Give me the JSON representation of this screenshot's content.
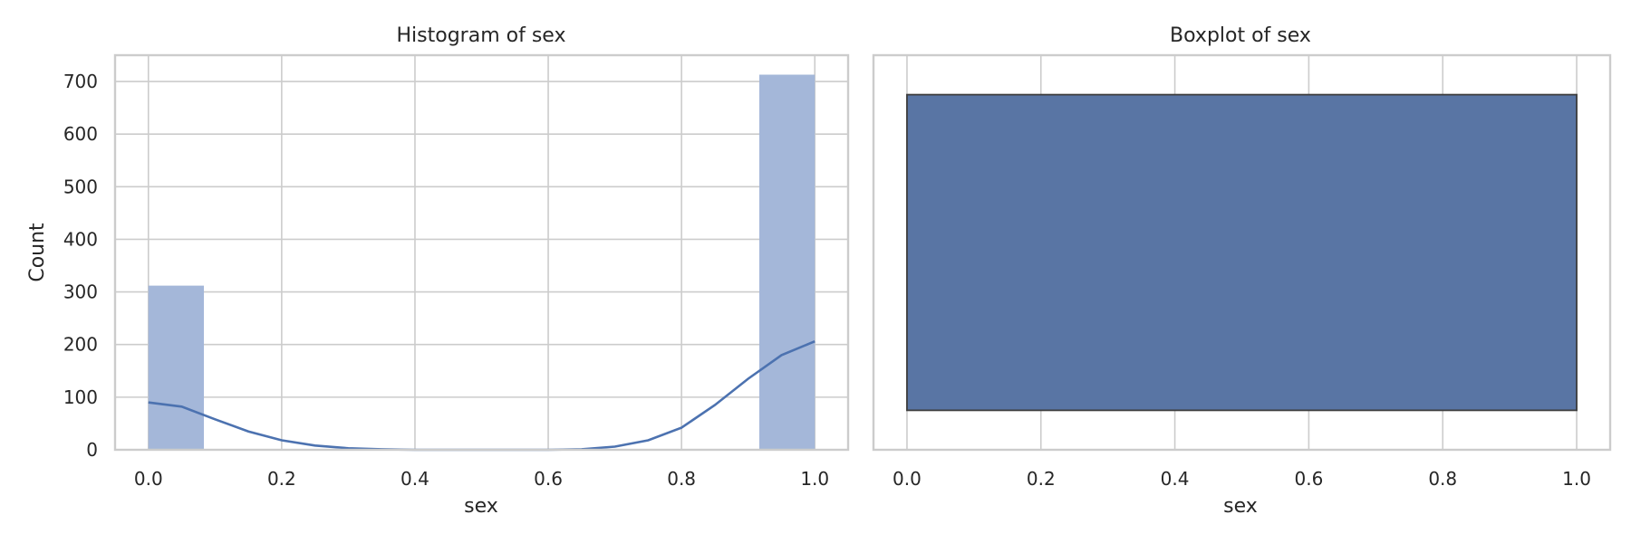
{
  "chart_data": [
    {
      "type": "bar",
      "title": "Histogram of sex",
      "xlabel": "sex",
      "ylabel": "Count",
      "xlim": [
        -0.05,
        1.05
      ],
      "ylim": [
        0,
        750
      ],
      "xticks": [
        "0.0",
        "0.2",
        "0.4",
        "0.6",
        "0.8",
        "1.0"
      ],
      "yticks": [
        "0",
        "100",
        "200",
        "300",
        "400",
        "500",
        "600",
        "700"
      ],
      "grid": true,
      "bins": [
        {
          "x0": 0.0,
          "x1": 0.0833,
          "count": 312
        },
        {
          "x0": 0.9167,
          "x1": 1.0,
          "count": 713
        }
      ],
      "kde": [
        [
          0.0,
          90
        ],
        [
          0.05,
          82
        ],
        [
          0.1,
          58
        ],
        [
          0.15,
          35
        ],
        [
          0.2,
          18
        ],
        [
          0.25,
          8
        ],
        [
          0.3,
          3
        ],
        [
          0.35,
          1
        ],
        [
          0.4,
          0
        ],
        [
          0.5,
          0
        ],
        [
          0.6,
          0
        ],
        [
          0.65,
          1
        ],
        [
          0.7,
          6
        ],
        [
          0.75,
          18
        ],
        [
          0.8,
          42
        ],
        [
          0.85,
          85
        ],
        [
          0.9,
          135
        ],
        [
          0.95,
          180
        ],
        [
          1.0,
          206
        ]
      ],
      "bar_color": "#a4b7d9",
      "line_color": "#4c72b0"
    },
    {
      "type": "box",
      "title": "Boxplot of sex",
      "xlabel": "sex",
      "xlim": [
        -0.05,
        1.05
      ],
      "xticks": [
        "0.0",
        "0.2",
        "0.4",
        "0.6",
        "0.8",
        "1.0"
      ],
      "grid": true,
      "box": {
        "q1": 0.0,
        "median": 1.0,
        "q3": 1.0,
        "whisker_low": 0.0,
        "whisker_high": 1.0
      },
      "box_color": "#5975a4",
      "edge_color": "#3d3d3d"
    }
  ]
}
